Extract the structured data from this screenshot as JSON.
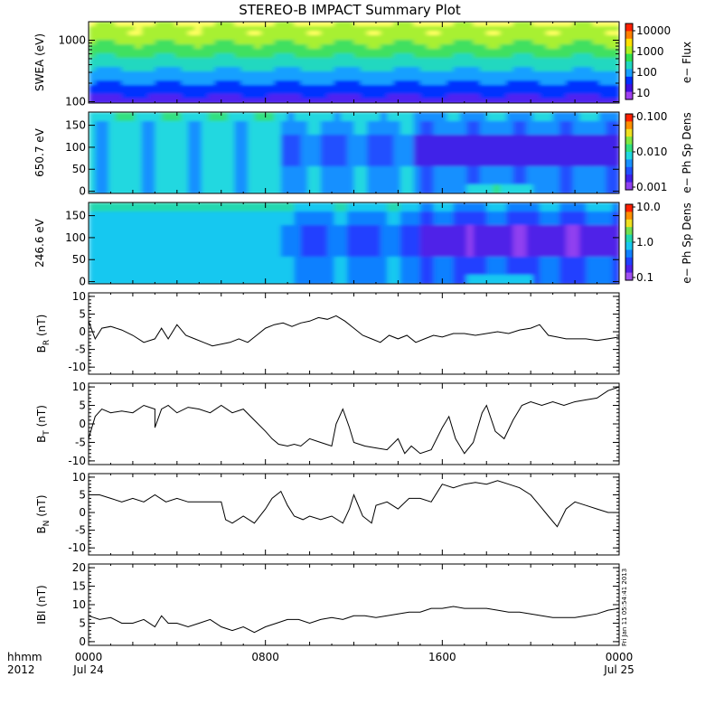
{
  "chart_data": {
    "type": "line",
    "title": "STEREO-B IMPACT Summary Plot",
    "timestamp_note": "Fri Jan 11 05:54:41 2013",
    "x_axis": {
      "row1_label": "hhmm",
      "row2_label": "2012",
      "ticks": [
        {
          "t": 0,
          "hhmm": "0000",
          "date": "Jul 24"
        },
        {
          "t": 8,
          "hhmm": "0800",
          "date": ""
        },
        {
          "t": 16,
          "hhmm": "1600",
          "date": ""
        },
        {
          "t": 24,
          "hhmm": "0000",
          "date": "Jul 25"
        }
      ],
      "range_hours": [
        0,
        24
      ]
    },
    "spectrograms": [
      {
        "ylabel": "SWEA (eV)",
        "yscale": "log",
        "ylim": [
          95,
          2000
        ],
        "yticks": [
          "100",
          "1000"
        ],
        "colorbar_label": "e− Flux",
        "colorbar_ticks": [
          "10000",
          "1000",
          "100",
          "10"
        ],
        "colormap": [
          "#ffff60",
          "#a8f030",
          "#40e060",
          "#20d8c0",
          "#18a0ff",
          "#0030ff",
          "#5020f0"
        ]
      },
      {
        "ylabel": "650.7 eV",
        "yscale": "linear",
        "ylim": [
          -5,
          180
        ],
        "yticks": [
          "0",
          "50",
          "100",
          "150"
        ],
        "colorbar_label": "e− Ph Sp Dens",
        "colorbar_ticks": [
          "0.100",
          "0.010",
          "0.001"
        ],
        "colormap": [
          "#80e840",
          "#30e080",
          "#20d8e0",
          "#1890ff",
          "#2050ff",
          "#4020e8",
          "#8030f0"
        ]
      },
      {
        "ylabel": "246.6 eV",
        "yscale": "linear",
        "ylim": [
          -5,
          180
        ],
        "yticks": [
          "0",
          "50",
          "100",
          "150"
        ],
        "colorbar_label": "e− Ph Sp Dens",
        "colorbar_ticks": [
          "10.0",
          "1.0",
          "0.1"
        ],
        "colormap": [
          "#60e060",
          "#20d8b0",
          "#18c8f0",
          "#1080ff",
          "#2040ff",
          "#5020e8",
          "#9040f0"
        ]
      }
    ],
    "series": [
      {
        "name": "B_R",
        "label_main": "B",
        "label_sub": "R",
        "unit": "(nT)",
        "ylim": [
          -12,
          11
        ],
        "yticks": [
          "10",
          "5",
          "0",
          "-5",
          "-10"
        ],
        "x": [
          0,
          0.3,
          0.6,
          1,
          1.5,
          2,
          2.5,
          3,
          3.3,
          3.6,
          4,
          4.4,
          4.8,
          5.2,
          5.6,
          6,
          6.4,
          6.8,
          7.2,
          7.6,
          8,
          8.4,
          8.8,
          9.2,
          9.6,
          10,
          10.4,
          10.8,
          11.2,
          11.6,
          12,
          12.4,
          12.8,
          13.2,
          13.6,
          14,
          14.4,
          14.8,
          15.2,
          15.6,
          16,
          16.5,
          17,
          17.5,
          18,
          18.5,
          19,
          19.5,
          20,
          20.4,
          20.8,
          21.2,
          21.6,
          22,
          22.5,
          23,
          23.5,
          24
        ],
        "y": [
          3,
          -2,
          1,
          1.5,
          0.5,
          -1,
          -3,
          -2,
          1,
          -2,
          2,
          -1,
          -2,
          -3,
          -4,
          -3.5,
          -3,
          -2,
          -3,
          -1,
          1,
          2,
          2.5,
          1.5,
          2.5,
          3,
          4,
          3.5,
          4.5,
          3,
          1,
          -1,
          -2,
          -3,
          -1,
          -2,
          -1,
          -3,
          -2,
          -1,
          -1.5,
          -0.5,
          -0.5,
          -1,
          -0.5,
          0,
          -0.5,
          0.5,
          1,
          2,
          -1,
          -1.5,
          -2,
          -2,
          -2,
          -2.5,
          -2,
          -1.5
        ]
      },
      {
        "name": "B_T",
        "label_main": "B",
        "label_sub": "T",
        "unit": "(nT)",
        "ylim": [
          -11,
          11
        ],
        "yticks": [
          "10",
          "5",
          "0",
          "-5",
          "-10"
        ],
        "x": [
          0,
          0.3,
          0.6,
          1,
          1.5,
          2,
          2.5,
          3,
          3,
          3.3,
          3.6,
          4,
          4.5,
          5,
          5.5,
          6,
          6.5,
          7,
          7.5,
          8,
          8.3,
          8.6,
          9,
          9.3,
          9.6,
          10,
          10.5,
          11,
          11.2,
          11.5,
          11.8,
          12,
          12.5,
          13,
          13.5,
          14,
          14.3,
          14.6,
          15,
          15.5,
          16,
          16.3,
          16.6,
          17,
          17.4,
          17.8,
          18,
          18.4,
          18.8,
          19.2,
          19.6,
          20,
          20.5,
          21,
          21.5,
          22,
          22.5,
          23,
          23.5,
          24
        ],
        "y": [
          -4,
          2,
          4,
          3,
          3.5,
          3,
          5,
          4,
          -1,
          4,
          5,
          3,
          4.5,
          4,
          3,
          5,
          3,
          4,
          1,
          -2,
          -4,
          -5.5,
          -6,
          -5.5,
          -6,
          -4,
          -5,
          -6,
          0,
          4,
          -1,
          -5,
          -6,
          -6.5,
          -7,
          -4,
          -8,
          -6,
          -8,
          -7,
          -1,
          2,
          -4,
          -8,
          -5,
          3,
          5,
          -2,
          -4,
          1,
          5,
          6,
          5,
          6,
          5,
          6,
          6.5,
          7,
          9,
          10
        ]
      },
      {
        "name": "B_N",
        "label_main": "B",
        "label_sub": "N",
        "unit": "(nT)",
        "ylim": [
          -12,
          11
        ],
        "yticks": [
          "10",
          "5",
          "0",
          "-5",
          "-10"
        ],
        "x": [
          0,
          0.5,
          1,
          1.5,
          2,
          2.5,
          3,
          3.5,
          4,
          4.5,
          5,
          5.5,
          6,
          6.2,
          6.5,
          7,
          7.5,
          8,
          8.3,
          8.7,
          9,
          9.3,
          9.7,
          10,
          10.5,
          11,
          11.5,
          11.8,
          12,
          12.4,
          12.8,
          13,
          13.5,
          14,
          14.5,
          15,
          15.5,
          16,
          16.5,
          17,
          17.5,
          18,
          18.5,
          19,
          19.5,
          20,
          20.4,
          20.8,
          21.2,
          21.6,
          22,
          22.5,
          23,
          23.5,
          24
        ],
        "y": [
          5,
          5,
          4,
          3,
          4,
          3,
          5,
          3,
          4,
          3,
          3,
          3,
          3,
          -2,
          -3,
          -1,
          -3,
          1,
          4,
          6,
          2,
          -1,
          -2,
          -1,
          -2,
          -1,
          -3,
          1,
          5,
          -1,
          -3,
          2,
          3,
          1,
          4,
          4,
          3,
          8,
          7,
          8,
          8.5,
          8,
          9,
          8,
          7,
          5,
          2,
          -1,
          -4,
          1,
          3,
          2,
          1,
          0,
          0
        ]
      },
      {
        "name": "|B|",
        "label_main": "IBI",
        "label_sub": "",
        "unit": "(nT)",
        "ylim": [
          -1,
          21
        ],
        "yticks": [
          "20",
          "15",
          "10",
          "5",
          "0"
        ],
        "x": [
          0,
          0.5,
          1,
          1.5,
          2,
          2.5,
          3,
          3.3,
          3.6,
          4,
          4.5,
          5,
          5.5,
          6,
          6.5,
          7,
          7.5,
          8,
          8.5,
          9,
          9.5,
          10,
          10.5,
          11,
          11.5,
          12,
          12.5,
          13,
          13.5,
          14,
          14.5,
          15,
          15.5,
          16,
          16.5,
          17,
          17.5,
          18,
          18.5,
          19,
          19.5,
          20,
          20.5,
          21,
          21.5,
          22,
          22.5,
          23,
          23.5,
          24
        ],
        "y": [
          7,
          6,
          6.5,
          5,
          5,
          6,
          4,
          7,
          5,
          5,
          4,
          5,
          6,
          4,
          3,
          4,
          2.5,
          4,
          5,
          6,
          6,
          5,
          6,
          6.5,
          6,
          7,
          7,
          6.5,
          7,
          7.5,
          8,
          8,
          9,
          9,
          9.5,
          9,
          9,
          9,
          8.5,
          8,
          8,
          7.5,
          7,
          6.5,
          6.5,
          6.5,
          7,
          7.5,
          8.5,
          9
        ]
      }
    ],
    "grid": false,
    "legend": "none"
  }
}
